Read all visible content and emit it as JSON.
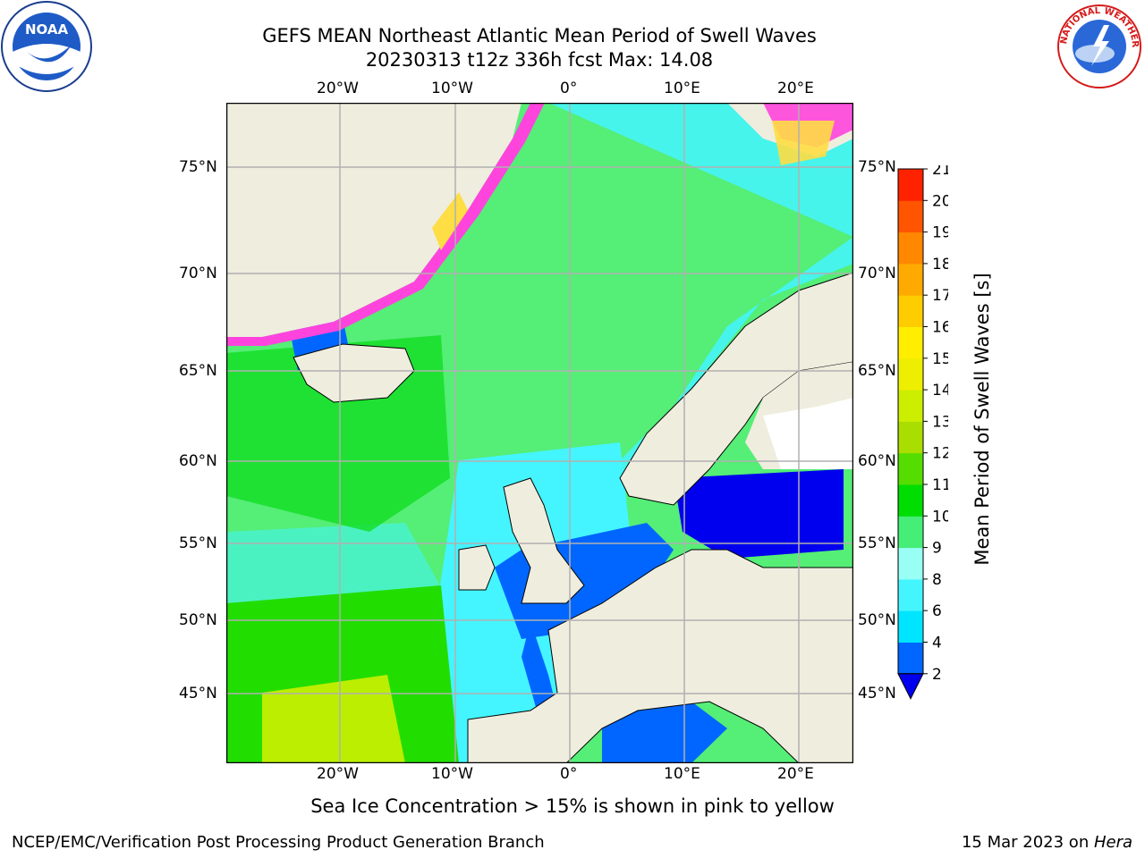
{
  "title": {
    "line1": "GEFS MEAN Northeast Atlantic Mean Period of Swell Waves",
    "line2": "20230313 t12z 336h fcst   Max: 14.08"
  },
  "logos": {
    "left": {
      "icon": "noaa-logo-icon",
      "text": "NOAA"
    },
    "right": {
      "icon": "nws-logo-icon",
      "ring_text": "NATIONAL WEATHER SERVICE"
    }
  },
  "axes": {
    "lon_labels": [
      "20°W",
      "10°W",
      "0°",
      "10°E",
      "20°E"
    ],
    "lat_labels": [
      "75°N",
      "70°N",
      "65°N",
      "60°N",
      "55°N",
      "50°N",
      "45°N"
    ]
  },
  "colorbar": {
    "label": "Mean Period of Swell Waves [s]",
    "ticks": [
      "2",
      "4",
      "6",
      "8",
      "9",
      "10",
      "11",
      "12",
      "13",
      "14",
      "15",
      "16",
      "17",
      "18",
      "19",
      "20",
      "21"
    ],
    "colors": [
      "#0066ff",
      "#00e5ff",
      "#44f5ff",
      "#99fff5",
      "#44ee77",
      "#00dd00",
      "#55dd00",
      "#aadd00",
      "#ccee00",
      "#eeee00",
      "#ffee00",
      "#ffcc00",
      "#ffaa00",
      "#ff8800",
      "#ff5500",
      "#ff2200"
    ],
    "under_color": "#0000ee"
  },
  "notes": {
    "ice": "Sea Ice Concentration > 15% is shown in pink to yellow"
  },
  "footer": {
    "left": "NCEP/EMC/Verification Post Processing Product Generation Branch",
    "right_prefix": "15 Mar 2023 on ",
    "right_machine": "Hera"
  },
  "colors": {
    "land": "#efedde",
    "grid": "#b0b0b0",
    "ice_pink": "#ff44dd",
    "ice_yellow": "#ffdd44",
    "sea_cyan": "#44f5ff",
    "sea_green": "#55ee77",
    "sea_blue": "#0066ff",
    "sea_deep_blue": "#0000ee"
  }
}
